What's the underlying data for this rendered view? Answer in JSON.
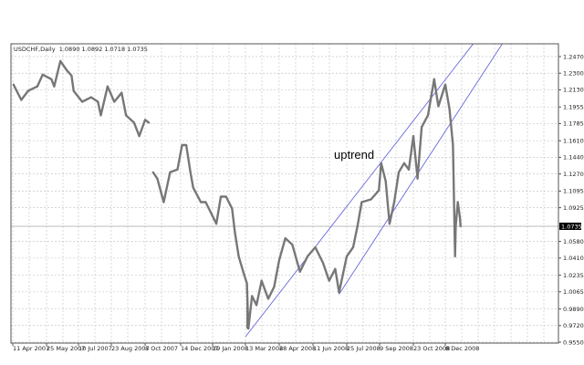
{
  "chart_data": {
    "type": "line",
    "header": {
      "symbol": "USDCHF,Daily",
      "ohlc": "1.0890 1.0892 1.0718 1.0735"
    },
    "annotation": "uptrend",
    "current_price": "1.0735",
    "ylim": [
      0.955,
      1.247
    ],
    "y_ticks": [
      "1.2470",
      "1.2300",
      "1.2130",
      "1.1955",
      "1.1785",
      "1.1610",
      "1.1440",
      "1.1270",
      "1.1095",
      "1.0925",
      "1.0580",
      "1.0410",
      "1.0235",
      "1.0065",
      "0.9890",
      "0.9720",
      "0.9550"
    ],
    "x_ticks": [
      {
        "label": "11 Apr 2007",
        "date": "2007-04-11"
      },
      {
        "label": "25 May 2007",
        "date": "2007-05-25"
      },
      {
        "label": "10 Jul 2007",
        "date": "2007-07-10"
      },
      {
        "label": "23 Aug 2007",
        "date": "2007-08-23"
      },
      {
        "label": "8 Oct 2007",
        "date": "2007-10-08"
      },
      {
        "label": "14 Dec 2007",
        "date": "2007-12-14"
      },
      {
        "label": "29 Jan 2008",
        "date": "2008-01-29"
      },
      {
        "label": "13 Mar 2008",
        "date": "2008-03-13"
      },
      {
        "label": "28 Apr 2008",
        "date": "2008-04-28"
      },
      {
        "label": "11 Jun 2008",
        "date": "2008-06-11"
      },
      {
        "label": "25 Jul 2008",
        "date": "2008-07-25"
      },
      {
        "label": "9 Sep 2008",
        "date": "2008-09-09"
      },
      {
        "label": "23 Oct 2008",
        "date": "2008-10-23"
      },
      {
        "label": "8 Dec 2008",
        "date": "2008-12-08"
      }
    ],
    "grid": true,
    "colors": {
      "price": "#777777",
      "channel": "#6666dd",
      "grid": "#c8c8c8",
      "current_price_bg": "#000000"
    },
    "series": [
      {
        "segment": [
          [
            "2007-04-12",
            1.2184
          ],
          [
            "2007-04-22",
            1.2027
          ],
          [
            "2007-05-01",
            1.2119
          ],
          [
            "2007-05-13",
            1.2165
          ],
          [
            "2007-05-20",
            1.2285
          ],
          [
            "2007-06-01",
            1.2239
          ],
          [
            "2007-06-05",
            1.2165
          ],
          [
            "2007-06-14",
            1.2424
          ],
          [
            "2007-06-23",
            1.2331
          ],
          [
            "2007-06-30",
            1.2276
          ],
          [
            "2007-07-03",
            1.2119
          ],
          [
            "2007-07-15",
            1.2008
          ],
          [
            "2007-07-27",
            1.2054
          ],
          [
            "2007-08-05",
            1.2008
          ],
          [
            "2007-08-09",
            1.1869
          ],
          [
            "2007-08-18",
            1.2165
          ],
          [
            "2007-08-27",
            1.2008
          ],
          [
            "2007-09-06",
            1.21
          ],
          [
            "2007-09-12",
            1.1869
          ],
          [
            "2007-09-23",
            1.1795
          ],
          [
            "2007-09-30",
            1.1657
          ],
          [
            "2007-10-08",
            1.1823
          ],
          [
            "2007-10-15",
            1.1795
          ]
        ]
      },
      {
        "segment": [
          [
            "2007-10-23",
            1.1287
          ],
          [
            "2007-10-31",
            1.1223
          ],
          [
            "2007-11-12",
            1.0982
          ],
          [
            "2007-11-24",
            1.1287
          ],
          [
            "2007-12-08",
            1.1315
          ],
          [
            "2007-12-16",
            1.1565
          ],
          [
            "2007-12-22",
            1.1565
          ],
          [
            "2007-12-28",
            1.1287
          ],
          [
            "2008-01-01",
            1.113
          ],
          [
            "2008-01-12",
            1.0982
          ],
          [
            "2008-01-19",
            1.0982
          ],
          [
            "2008-02-03",
            1.0761
          ],
          [
            "2008-02-09",
            1.1038
          ],
          [
            "2008-02-16",
            1.1038
          ],
          [
            "2008-02-24",
            1.0918
          ],
          [
            "2008-02-28",
            1.0668
          ],
          [
            "2008-03-04",
            1.0428
          ],
          [
            "2008-03-10",
            1.0271
          ],
          [
            "2008-03-15",
            1.0151
          ],
          [
            "2008-03-17",
            0.9689
          ],
          [
            "2008-03-22",
            1.0021
          ],
          [
            "2008-03-28",
            0.9929
          ],
          [
            "2008-04-04",
            1.0179
          ],
          [
            "2008-04-13",
            0.9994
          ],
          [
            "2008-04-21",
            1.0114
          ],
          [
            "2008-04-28",
            1.0391
          ],
          [
            "2008-05-06",
            1.0613
          ],
          [
            "2008-05-15",
            1.0548
          ],
          [
            "2008-05-25",
            1.0271
          ],
          [
            "2008-06-04",
            1.0428
          ],
          [
            "2008-06-14",
            1.052
          ],
          [
            "2008-06-24",
            1.0363
          ],
          [
            "2008-07-02",
            1.0179
          ],
          [
            "2008-07-10",
            1.0299
          ],
          [
            "2008-07-15",
            1.0058
          ],
          [
            "2008-07-25",
            1.0428
          ],
          [
            "2008-08-03",
            1.052
          ],
          [
            "2008-08-09",
            1.0733
          ],
          [
            "2008-08-15",
            1.0982
          ],
          [
            "2008-08-28",
            1.101
          ],
          [
            "2008-09-08",
            1.1102
          ],
          [
            "2008-09-11",
            1.138
          ],
          [
            "2008-09-17",
            1.1195
          ],
          [
            "2008-09-22",
            1.0761
          ],
          [
            "2008-09-28",
            1.0982
          ],
          [
            "2008-10-04",
            1.1287
          ],
          [
            "2008-10-11",
            1.138
          ],
          [
            "2008-10-17",
            1.1315
          ],
          [
            "2008-10-23",
            1.1657
          ],
          [
            "2008-10-29",
            1.1223
          ],
          [
            "2008-11-04",
            1.1749
          ],
          [
            "2008-11-13",
            1.1869
          ],
          [
            "2008-11-22",
            1.2239
          ],
          [
            "2008-11-28",
            1.1962
          ],
          [
            "2008-12-08",
            1.2184
          ],
          [
            "2008-12-14",
            1.1934
          ],
          [
            "2008-12-19",
            1.1565
          ],
          [
            "2008-12-22",
            1.0428
          ],
          [
            "2008-12-23",
            1.0733
          ],
          [
            "2008-12-26",
            1.0982
          ],
          [
            "2008-12-29",
            1.0825
          ],
          [
            "2008-12-30",
            1.0735
          ]
        ]
      }
    ],
    "channel_lines": [
      {
        "from": [
          "2008-03-13",
          0.9606
        ],
        "to": [
          "2009-01-17",
          1.2599
        ]
      },
      {
        "from": [
          "2008-07-15",
          1.004
        ],
        "to": [
          "2009-02-28",
          1.2599
        ]
      }
    ]
  }
}
